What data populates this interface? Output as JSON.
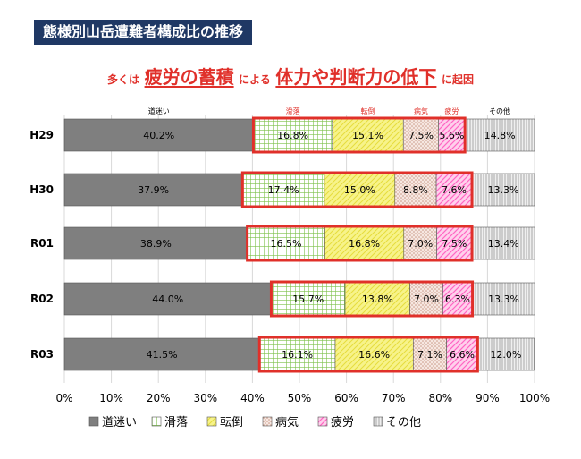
{
  "title": "態様別山岳遭難者構成比の推移",
  "headline": [
    {
      "text": "多くは",
      "size": "small"
    },
    {
      "text": "疲労の蓄積",
      "size": "big"
    },
    {
      "text": "による",
      "size": "small"
    },
    {
      "text": "体力や判断力の低下",
      "size": "big"
    },
    {
      "text": "に起因",
      "size": "small"
    }
  ],
  "chart_data": {
    "type": "bar",
    "orientation": "horizontal",
    "stacked": true,
    "categories": [
      "H29",
      "H30",
      "R01",
      "R02",
      "R03"
    ],
    "series": [
      {
        "name": "道迷い",
        "values": [
          40.2,
          37.9,
          38.9,
          44.0,
          41.5
        ],
        "labels": [
          "40.2%",
          "37.9%",
          "38.9%",
          "44.0%",
          "41.5%"
        ],
        "color": "#7f7f7f",
        "pattern": "solid"
      },
      {
        "name": "滑落",
        "values": [
          16.8,
          17.4,
          16.5,
          15.7,
          16.1
        ],
        "labels": [
          "16.8%",
          "17.4%",
          "16.5%",
          "15.7%",
          "16.1%"
        ],
        "color": "#7dc24b",
        "pattern": "grid"
      },
      {
        "name": "転倒",
        "values": [
          15.1,
          15.0,
          16.8,
          13.8,
          16.6
        ],
        "labels": [
          "15.1%",
          "15.0%",
          "16.8%",
          "13.8%",
          "16.6%"
        ],
        "color": "#f5f06e",
        "pattern": "diagonal"
      },
      {
        "name": "病気",
        "values": [
          7.5,
          8.8,
          7.0,
          7.0,
          7.1
        ],
        "labels": [
          "7.5%",
          "8.8%",
          "7.0%",
          "7.0%",
          "7.1%"
        ],
        "color": "#e8b9a8",
        "pattern": "dots"
      },
      {
        "name": "疲労",
        "values": [
          5.6,
          7.6,
          7.5,
          6.3,
          6.6
        ],
        "labels": [
          "5.6%",
          "7.6%",
          "7.5%",
          "6.3%",
          "6.6%"
        ],
        "color": "#ff77c8",
        "pattern": "diagonal"
      },
      {
        "name": "その他",
        "values": [
          14.8,
          13.3,
          13.4,
          13.3,
          12.0
        ],
        "labels": [
          "14.8%",
          "13.3%",
          "13.4%",
          "13.3%",
          "12.0%"
        ],
        "color": "#c8c8c8",
        "pattern": "vertical"
      }
    ],
    "segment_header_labels": [
      "道迷い",
      "滑落",
      "転倒",
      "病気",
      "疲労",
      "その他"
    ],
    "xlim": [
      0,
      100
    ],
    "xticks": [
      "0%",
      "10%",
      "20%",
      "30%",
      "40%",
      "50%",
      "60%",
      "70%",
      "80%",
      "90%",
      "100%"
    ],
    "highlight": {
      "series": [
        "滑落",
        "転倒",
        "病気",
        "疲労"
      ],
      "color": "#e0302a"
    },
    "legend_position": "bottom"
  }
}
